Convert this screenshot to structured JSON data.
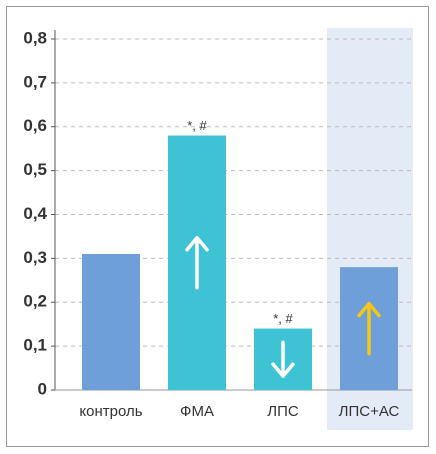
{
  "chart_data": {
    "type": "bar",
    "categories": [
      "контроль",
      "ФМА",
      "ЛПС",
      "ЛПС+АС"
    ],
    "values": [
      0.31,
      0.58,
      0.14,
      0.28
    ],
    "colors": [
      "#6f9fd9",
      "#3ec3d5",
      "#3ec3d5",
      "#6f9fd9"
    ],
    "annotations": [
      null,
      "*, #",
      "*, #",
      null
    ],
    "arrows": [
      null,
      {
        "dir": "up",
        "color": "#ffffff"
      },
      {
        "dir": "down",
        "color": "#ffffff"
      },
      {
        "dir": "up",
        "color": "#f5c518"
      }
    ],
    "highlight": "ЛПС+АС",
    "highlight_color": "#e3ebf7",
    "ylim": [
      0,
      0.8
    ],
    "yticks": [
      0,
      {
        "value": 0.1,
        "label": "0,1"
      },
      {
        "value": 0.2,
        "label": "0,2"
      },
      {
        "value": 0.3,
        "label": "0,3"
      },
      {
        "value": 0.4,
        "label": "0,4"
      },
      {
        "value": 0.5,
        "label": "0,5"
      },
      {
        "value": 0.6,
        "label": "0,6"
      },
      {
        "value": 0.7,
        "label": "0,7"
      },
      {
        "value": 0.8,
        "label": "0,8"
      }
    ],
    "grid": true
  }
}
